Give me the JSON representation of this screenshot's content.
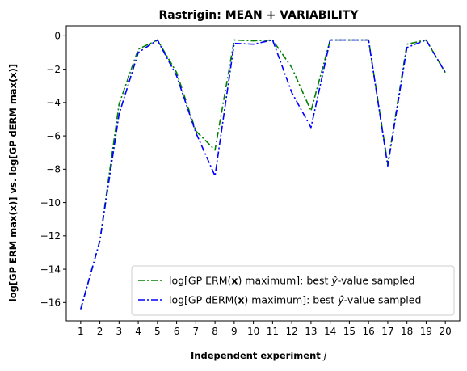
{
  "chart_data": {
    "type": "line",
    "title": "Rastrigin: MEAN + VARIABILITY",
    "xlabel": "Independent experiment",
    "xlabel_var": "j",
    "ylabel": "log[GP ERM max(x)] vs. log[GP dERM max(x)]",
    "xlim": [
      0.25,
      20.75
    ],
    "ylim": [
      -17.1,
      0.6
    ],
    "x": [
      1,
      2,
      3,
      4,
      5,
      6,
      7,
      8,
      9,
      10,
      11,
      12,
      13,
      14,
      15,
      16,
      17,
      18,
      19,
      20
    ],
    "x_ticks": [
      "1",
      "2",
      "3",
      "4",
      "5",
      "6",
      "7",
      "8",
      "9",
      "10",
      "11",
      "12",
      "13",
      "14",
      "15",
      "16",
      "17",
      "18",
      "19",
      "20"
    ],
    "y_ticks": [
      0,
      -2,
      -4,
      -6,
      -8,
      -10,
      -12,
      -14,
      -16
    ],
    "y_tick_labels": [
      "0",
      "−2",
      "−4",
      "−6",
      "−8",
      "−10",
      "−12",
      "−14",
      "−16"
    ],
    "grid": false,
    "legend_position": "lower-right",
    "series": [
      {
        "name": "log[GP ERM(x) maximum]: best ŷ-value sampled",
        "legend_pre": "log[GP ERM(",
        "legend_bold": "x",
        "legend_mid": ") maximum]: best ",
        "legend_var": "ŷ",
        "legend_post": "-value sampled",
        "color": "#008000",
        "dash": "8 3 2 3",
        "values": [
          -16.4,
          -12.3,
          -4.1,
          -0.8,
          -0.25,
          -2.2,
          -5.7,
          -6.85,
          -0.25,
          -0.3,
          -0.25,
          -1.9,
          -4.5,
          -0.25,
          -0.25,
          -0.25,
          -7.7,
          -0.5,
          -0.25,
          -2.2
        ]
      },
      {
        "name": "log[GP dERM(x) maximum]: best ŷ-value sampled",
        "legend_pre": "log[GP dERM(",
        "legend_bold": "x",
        "legend_mid": ") maximum]: best ",
        "legend_var": "ŷ",
        "legend_post": "-value sampled",
        "color": "#0000ff",
        "dash": "8 3 2 3",
        "values": [
          -16.4,
          -12.3,
          -4.7,
          -1.0,
          -0.25,
          -2.4,
          -5.8,
          -8.4,
          -0.45,
          -0.5,
          -0.25,
          -3.4,
          -5.5,
          -0.25,
          -0.25,
          -0.25,
          -7.8,
          -0.7,
          -0.25,
          -2.2
        ]
      }
    ]
  }
}
